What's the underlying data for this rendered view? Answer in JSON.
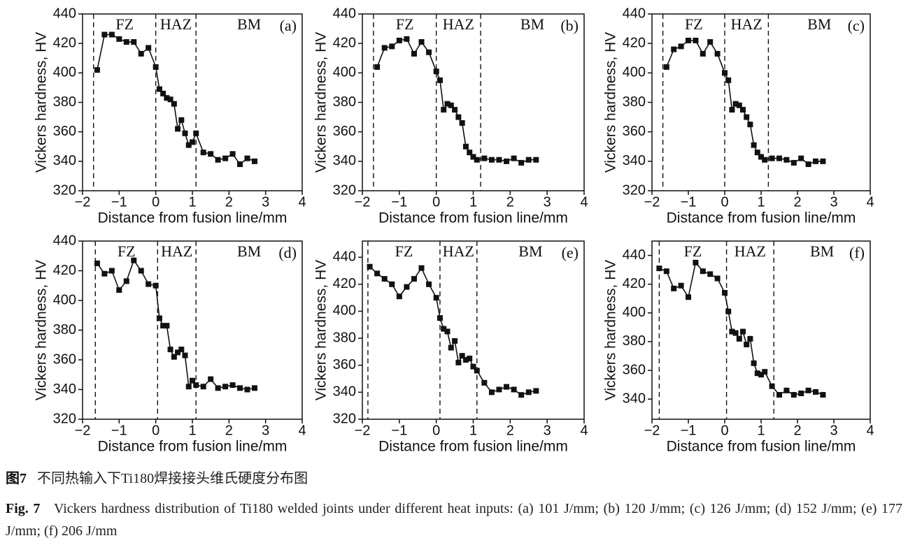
{
  "chart_data": [
    {
      "type": "line",
      "panel_label": "(a)",
      "zones": [
        "FZ",
        "HAZ",
        "BM"
      ],
      "boundaries": [
        -1.7,
        0.0,
        1.1
      ],
      "xlabel": "Distance from fusion line/mm",
      "ylabel": "Vickers hardness, HV",
      "x": [
        -1.6,
        -1.4,
        -1.2,
        -1.0,
        -0.8,
        -0.6,
        -0.4,
        -0.2,
        0,
        0.1,
        0.2,
        0.3,
        0.4,
        0.5,
        0.6,
        0.7,
        0.8,
        0.9,
        1.0,
        1.1,
        1.3,
        1.5,
        1.7,
        1.9,
        2.1,
        2.3,
        2.5,
        2.7
      ],
      "values": [
        402,
        426,
        426,
        423,
        421,
        421,
        413,
        417,
        404,
        389,
        386,
        383,
        382,
        379,
        362,
        368,
        359,
        351,
        353,
        359,
        346,
        345,
        341,
        342,
        345,
        338,
        342,
        340
      ],
      "color": "#111",
      "xlim": [
        -2,
        4
      ],
      "ylim": [
        320,
        440
      ],
      "xticks": [
        {
          "value": -2,
          "label": "−2"
        },
        {
          "value": -1,
          "label": "−1"
        },
        0,
        1,
        2,
        3,
        4
      ],
      "yticks": [
        320,
        340,
        360,
        380,
        400,
        420,
        440
      ]
    },
    {
      "type": "line",
      "panel_label": "(b)",
      "zones": [
        "FZ",
        "HAZ",
        "BM"
      ],
      "boundaries": [
        -1.7,
        0.0,
        1.2
      ],
      "xlabel": "Distance from fusion line/mm",
      "ylabel": "Vickers hardness, HV",
      "x": [
        -1.6,
        -1.4,
        -1.2,
        -1.0,
        -0.8,
        -0.6,
        -0.4,
        -0.2,
        0,
        0.1,
        0.2,
        0.3,
        0.4,
        0.5,
        0.6,
        0.7,
        0.8,
        0.9,
        1.0,
        1.1,
        1.3,
        1.5,
        1.7,
        1.9,
        2.1,
        2.3,
        2.5,
        2.7
      ],
      "values": [
        404,
        417,
        418,
        422,
        423,
        413,
        421,
        414,
        401,
        395,
        375,
        379,
        378,
        375,
        370,
        366,
        350,
        346,
        343,
        341,
        342,
        341,
        341,
        340,
        342,
        339,
        341,
        341
      ],
      "color": "#111",
      "xlim": [
        -2,
        4
      ],
      "ylim": [
        320,
        440
      ],
      "xticks": [
        {
          "value": -2,
          "label": "−2"
        },
        {
          "value": -1,
          "label": "−1"
        },
        0,
        1,
        2,
        3,
        4
      ],
      "yticks": [
        320,
        340,
        360,
        380,
        400,
        420,
        440
      ]
    },
    {
      "type": "line",
      "panel_label": "(c)",
      "zones": [
        "FZ",
        "HAZ",
        "BM"
      ],
      "boundaries": [
        -1.7,
        0.0,
        1.2
      ],
      "xlabel": "Distance from fusion line/mm",
      "ylabel": "Vickers hardness, HV",
      "x": [
        -1.6,
        -1.4,
        -1.2,
        -1.0,
        -0.8,
        -0.6,
        -0.4,
        -0.2,
        0,
        0.1,
        0.2,
        0.3,
        0.4,
        0.5,
        0.6,
        0.7,
        0.8,
        0.9,
        1.0,
        1.1,
        1.3,
        1.5,
        1.7,
        1.9,
        2.1,
        2.3,
        2.5,
        2.7
      ],
      "values": [
        404,
        416,
        418,
        422,
        422,
        413,
        421,
        413,
        400,
        395,
        375,
        379,
        378,
        375,
        370,
        365,
        351,
        346,
        343,
        341,
        342,
        342,
        341,
        339,
        342,
        338,
        340,
        340
      ],
      "color": "#111",
      "xlim": [
        -2,
        4
      ],
      "ylim": [
        320,
        440
      ],
      "xticks": [
        {
          "value": -2,
          "label": "−2"
        },
        {
          "value": -1,
          "label": "−1"
        },
        0,
        1,
        2,
        3,
        4
      ],
      "yticks": [
        320,
        340,
        360,
        380,
        400,
        420,
        440
      ]
    },
    {
      "type": "line",
      "panel_label": "(d)",
      "zones": [
        "FZ",
        "HAZ",
        "BM"
      ],
      "boundaries": [
        -1.65,
        0.05,
        1.1
      ],
      "xlabel": "Distance from fusion line/mm",
      "ylabel": "Vickers hardness, HV",
      "x": [
        -1.6,
        -1.4,
        -1.2,
        -1.0,
        -0.8,
        -0.6,
        -0.4,
        -0.2,
        0,
        0.1,
        0.2,
        0.3,
        0.4,
        0.5,
        0.6,
        0.7,
        0.8,
        0.9,
        1.0,
        1.1,
        1.3,
        1.5,
        1.7,
        1.9,
        2.1,
        2.3,
        2.5,
        2.7
      ],
      "values": [
        425,
        418,
        420,
        407,
        413,
        427,
        420,
        411,
        410,
        388,
        383,
        383,
        367,
        362,
        365,
        367,
        363,
        342,
        346,
        343,
        342,
        347,
        341,
        342,
        343,
        341,
        340,
        341
      ],
      "color": "#111",
      "xlim": [
        -2,
        4
      ],
      "ylim": [
        320,
        440
      ],
      "xticks": [
        {
          "value": -2,
          "label": "−2"
        },
        {
          "value": -1,
          "label": "−1"
        },
        0,
        1,
        2,
        3,
        4
      ],
      "yticks": [
        320,
        340,
        360,
        380,
        400,
        420,
        440
      ]
    },
    {
      "type": "line",
      "panel_label": "(e)",
      "zones": [
        "FZ",
        "HAZ",
        "BM"
      ],
      "boundaries": [
        -1.85,
        0.1,
        1.1
      ],
      "xlabel": "Distance from fusion line/mm",
      "ylabel": "Vickers hardness, HV",
      "x": [
        -1.8,
        -1.6,
        -1.4,
        -1.2,
        -1.0,
        -0.8,
        -0.6,
        -0.4,
        -0.2,
        0,
        0.1,
        0.2,
        0.3,
        0.4,
        0.5,
        0.6,
        0.7,
        0.8,
        0.9,
        1.0,
        1.1,
        1.3,
        1.5,
        1.7,
        1.9,
        2.1,
        2.3,
        2.5,
        2.7
      ],
      "values": [
        433,
        428,
        424,
        420,
        411,
        418,
        424,
        432,
        420,
        410,
        395,
        387,
        385,
        373,
        378,
        362,
        367,
        364,
        365,
        359,
        356,
        347,
        340,
        342,
        344,
        342,
        338,
        340,
        341
      ],
      "color": "#111",
      "xlim": [
        -2,
        4
      ],
      "ylim": [
        320,
        452
      ],
      "xticks": [
        {
          "value": -2,
          "label": "−2"
        },
        {
          "value": -1,
          "label": "−1"
        },
        0,
        1,
        2,
        3,
        4
      ],
      "yticks": [
        320,
        340,
        360,
        380,
        400,
        420,
        440
      ]
    },
    {
      "type": "line",
      "panel_label": "(f)",
      "zones": [
        "FZ",
        "HAZ",
        "BM"
      ],
      "boundaries": [
        -1.8,
        0.05,
        1.35
      ],
      "xlabel": "Distance from fusion line/mm",
      "ylabel": "Vickers hardness, HV",
      "x": [
        -1.8,
        -1.6,
        -1.4,
        -1.2,
        -1.0,
        -0.8,
        -0.6,
        -0.4,
        -0.2,
        0,
        0.1,
        0.2,
        0.3,
        0.4,
        0.5,
        0.6,
        0.7,
        0.8,
        0.9,
        1.0,
        1.1,
        1.3,
        1.5,
        1.7,
        1.9,
        2.1,
        2.3,
        2.5,
        2.7
      ],
      "values": [
        431,
        429,
        417,
        419,
        411,
        435,
        429,
        427,
        424,
        414,
        401,
        387,
        386,
        382,
        387,
        378,
        382,
        365,
        358,
        357,
        359,
        349,
        343,
        346,
        343,
        344,
        346,
        345,
        343
      ],
      "color": "#111",
      "xlim": [
        -2,
        4
      ],
      "ylim": [
        326,
        450
      ],
      "xticks": [
        {
          "value": -2,
          "label": "−2"
        },
        {
          "value": -1,
          "label": "−1"
        },
        0,
        1,
        2,
        3,
        4
      ],
      "yticks": [
        340,
        360,
        380,
        400,
        420,
        440
      ]
    }
  ],
  "caption": {
    "cn_label": "图7",
    "cn_text": "不同热输入下Ti180焊接接头维氏硬度分布图",
    "en_label": "Fig. 7",
    "en_text": "Vickers hardness distribution of Ti180 welded joints under different heat inputs: (a) 101 J/mm; (b) 120 J/mm; (c) 126 J/mm; (d) 152 J/mm; (e) 177 J/mm; (f) 206 J/mm"
  }
}
